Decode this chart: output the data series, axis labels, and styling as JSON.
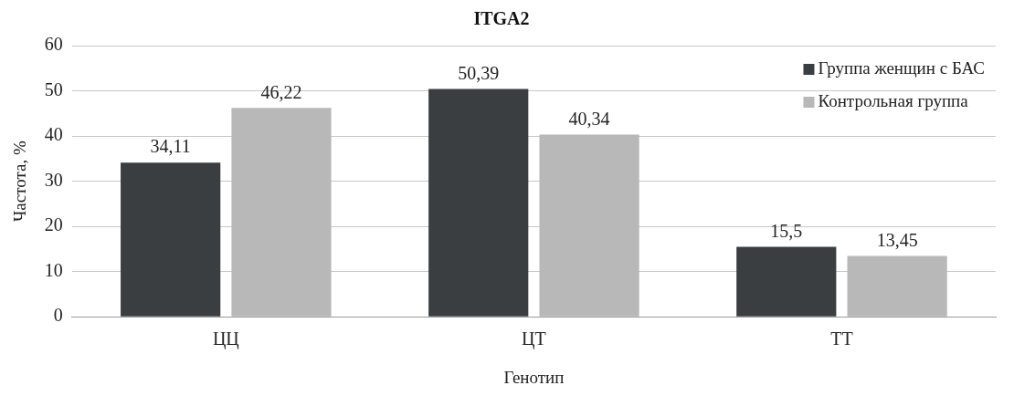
{
  "chart_data": {
    "type": "bar",
    "title": "ITGA2",
    "xlabel": "Генотип",
    "ylabel": "Частота, %",
    "categories": [
      "ЦЦ",
      "ЦТ",
      "ТТ"
    ],
    "series": [
      {
        "name": "Группа женщин с БАС",
        "color": "#3b3e40",
        "values": [
          34.11,
          50.39,
          15.5
        ],
        "value_labels": [
          "34,11",
          "50,39",
          "15,5"
        ]
      },
      {
        "name": "Контрольная группа",
        "color": "#b8b8b8",
        "values": [
          46.22,
          40.34,
          13.45
        ],
        "value_labels": [
          "46,22",
          "40,34",
          "13,45"
        ]
      }
    ],
    "ylim": [
      0,
      60
    ],
    "yticks": [
      0,
      10,
      20,
      30,
      40,
      50,
      60
    ],
    "grid": "y",
    "legend": "top right"
  }
}
